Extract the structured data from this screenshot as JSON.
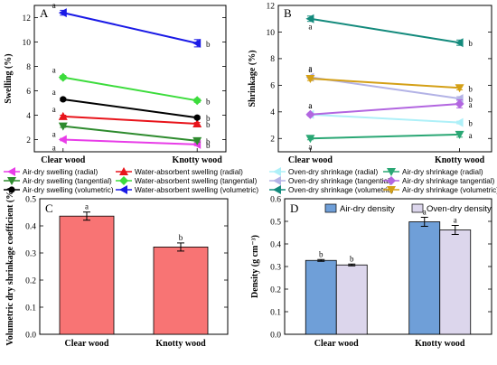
{
  "chart_data": [
    {
      "panel": "A",
      "type": "line",
      "ylabel": "Swelling (%)",
      "categories": [
        "Clear wood",
        "Knotty wood"
      ],
      "ylim": [
        1,
        13
      ],
      "yticks": [
        2,
        4,
        6,
        8,
        10,
        12
      ],
      "series": [
        {
          "name": "Air-dry swelling (radial)",
          "color": "#e83de8",
          "marker": "triangle-left",
          "values": [
            2.0,
            1.6
          ],
          "errors": [
            0.1,
            0.1
          ],
          "labels": [
            "a",
            "b"
          ]
        },
        {
          "name": "Water-absorbent swelling (radial)",
          "color": "#e8141b",
          "marker": "triangle-up",
          "values": [
            3.9,
            3.3
          ],
          "errors": [
            0.1,
            0.1
          ],
          "labels": [
            "a",
            "b"
          ]
        },
        {
          "name": "Air-dry swelling (tangential)",
          "color": "#2e8b2e",
          "marker": "triangle-down",
          "values": [
            3.1,
            1.9
          ],
          "errors": [
            0.1,
            0.1
          ],
          "labels": [
            "a",
            "b"
          ]
        },
        {
          "name": "Water-absorbent swelling (tangential)",
          "color": "#3cdc3c",
          "marker": "diamond",
          "values": [
            7.1,
            5.2
          ],
          "errors": [
            0.15,
            0.15
          ],
          "labels": [
            "a",
            "b"
          ]
        },
        {
          "name": "Air-dry swelling (volumetric)",
          "color": "#000000",
          "marker": "circle",
          "values": [
            5.3,
            3.8
          ],
          "errors": [
            0.1,
            0.1
          ],
          "labels": [
            "a",
            "b"
          ]
        },
        {
          "name": "Water-absorbent swelling (volumetric)",
          "color": "#1a1ae6",
          "marker": "triangle-left",
          "values": [
            12.4,
            9.9
          ],
          "errors": [
            0.2,
            0.3
          ],
          "labels": [
            "a",
            "b"
          ]
        }
      ]
    },
    {
      "panel": "B",
      "type": "line",
      "ylabel": "Shrinkage (%)",
      "categories": [
        "Clear wood",
        "Knotty wood"
      ],
      "ylim": [
        1,
        12
      ],
      "yticks": [
        2,
        4,
        6,
        8,
        10,
        12
      ],
      "series": [
        {
          "name": "Oven-dry shrinkage (radial)",
          "color": "#aef0f8",
          "marker": "triangle-left",
          "values": [
            3.8,
            3.2
          ],
          "errors": [
            0.1,
            0.1
          ],
          "labels": [
            "a",
            "b"
          ]
        },
        {
          "name": "Air-dry shrinkage (radial)",
          "color": "#2aa774",
          "marker": "triangle-down",
          "values": [
            2.0,
            2.3
          ],
          "errors": [
            0.1,
            0.2
          ],
          "labels": [
            "a",
            "a"
          ]
        },
        {
          "name": "Oven-dry shrinkage (tangential)",
          "color": "#b3b3e6",
          "marker": "triangle-left",
          "values": [
            6.6,
            5.0
          ],
          "errors": [
            0.1,
            0.15
          ],
          "labels": [
            "a",
            "b"
          ]
        },
        {
          "name": "Air-dry shrinkage tangential)",
          "color": "#b266e0",
          "marker": "diamond",
          "values": [
            3.8,
            4.6
          ],
          "errors": [
            0.1,
            0.3
          ],
          "labels": [
            "a",
            "a"
          ]
        },
        {
          "name": "Oven-dry shrinkage (volumetric)",
          "color": "#138a7c",
          "marker": "triangle-left",
          "values": [
            11.0,
            9.2
          ],
          "errors": [
            0.2,
            0.2
          ],
          "labels": [
            "a",
            "b"
          ]
        },
        {
          "name": "Air-dry shrinkage (volumetric)",
          "color": "#d4a017",
          "marker": "triangle-down",
          "values": [
            6.5,
            5.8
          ],
          "errors": [
            0.15,
            0.15
          ],
          "labels": [
            "a",
            "b"
          ]
        }
      ]
    },
    {
      "panel": "C",
      "type": "bar",
      "ylabel": "Volumetric dry shrinkage coefficient (%)",
      "categories": [
        "Clear wood",
        "Knotty wood"
      ],
      "ylim": [
        0,
        0.5
      ],
      "yticks": [
        0.0,
        0.1,
        0.2,
        0.3,
        0.4,
        0.5
      ],
      "values": [
        0.436,
        0.322
      ],
      "errors": [
        0.015,
        0.015
      ],
      "labels": [
        "a",
        "b"
      ],
      "color": "#f87474"
    },
    {
      "panel": "D",
      "type": "bar",
      "ylabel": "Density (g cm⁻³)",
      "categories": [
        "Clear wood",
        "Knotty wood"
      ],
      "ylim": [
        0,
        0.6
      ],
      "yticks": [
        0.0,
        0.1,
        0.2,
        0.3,
        0.4,
        0.5,
        0.6
      ],
      "legend_position": "top",
      "series": [
        {
          "name": "Air-dry density",
          "color": "#6f9fd8",
          "values": [
            0.327,
            0.498
          ],
          "errors": [
            0.004,
            0.02
          ],
          "labels": [
            "b",
            "a"
          ]
        },
        {
          "name": "Oven-dry density",
          "color": "#dcd6ec",
          "values": [
            0.307,
            0.462
          ],
          "errors": [
            0.004,
            0.02
          ],
          "labels": [
            "b",
            "a"
          ]
        }
      ]
    }
  ]
}
